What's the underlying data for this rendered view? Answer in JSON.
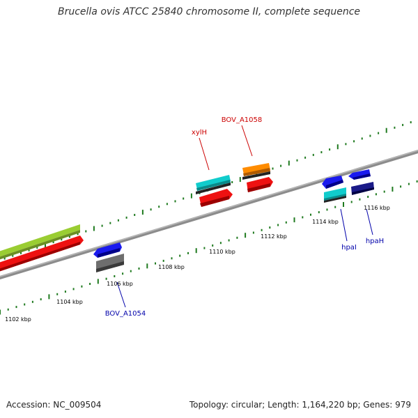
{
  "title": "Brucella ovis ATCC 25840 chromosome II, complete sequence",
  "footer": {
    "accession": "Accession: NC_009504",
    "topology": "Topology: circular; Length: 1,164,220 bp; Genes: 979"
  },
  "colors": {
    "background": "#ffffff",
    "backbone": "#8c8c8c",
    "tick": "#1f7a1f",
    "forward_label": "#cc0000",
    "reverse_label": "#0000aa"
  },
  "kbp_labels": [
    "1102 kbp",
    "1104 kbp",
    "1106 kbp",
    "1108 kbp",
    "1110 kbp",
    "1112 kbp",
    "1114 kbp",
    "1116 kbp"
  ],
  "gene_labels": {
    "xylH": "xylH",
    "BOV_A1058": "BOV_A1058",
    "BOV_A1054": "BOV_A1054",
    "hpaI": "hpaI",
    "hpaH": "hpaH"
  },
  "features": [
    {
      "id": "lime-feature",
      "color": "#9acd32"
    },
    {
      "id": "red-feature-left",
      "color": "#ee1111"
    },
    {
      "id": "blue-feature-1054",
      "color": "#1a1aee"
    },
    {
      "id": "gray-feature-1054",
      "color": "#6e6e6e"
    },
    {
      "id": "cyan-feature-xylH",
      "color": "#11cccc"
    },
    {
      "id": "red-feature-xylH",
      "color": "#ee1111"
    },
    {
      "id": "orange-feature-1058",
      "color": "#ff8c00"
    },
    {
      "id": "red-feature-1058",
      "color": "#ee1111"
    },
    {
      "id": "blue-feature-hpaI",
      "color": "#1a1aee"
    },
    {
      "id": "cyan-feature-hpaI",
      "color": "#11cccc"
    },
    {
      "id": "blue-feature-hpaH",
      "color": "#1a1aee"
    },
    {
      "id": "navy-feature-hpaH",
      "color": "#1a1a88"
    }
  ]
}
